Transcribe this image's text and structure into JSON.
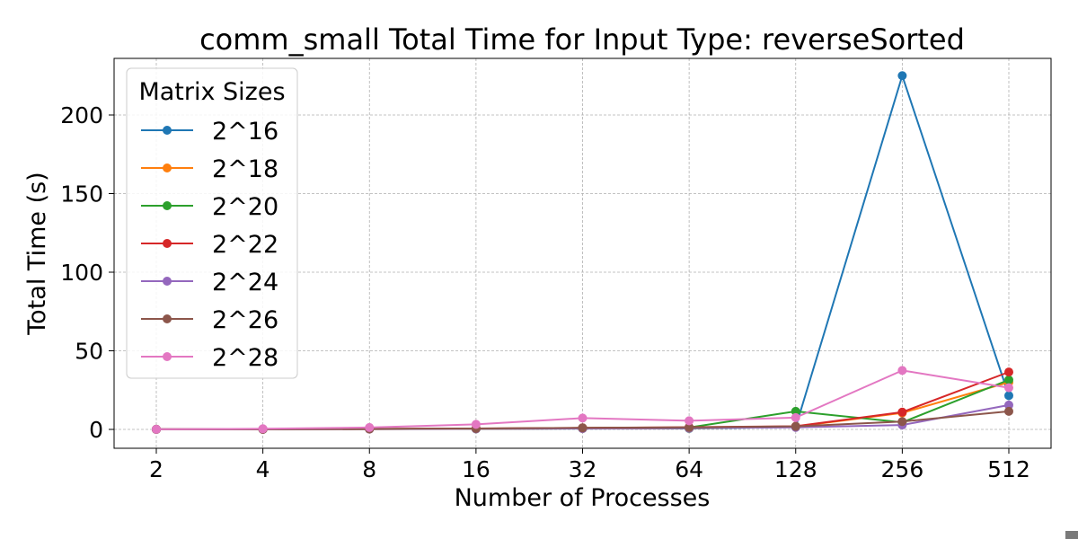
{
  "chart_data": {
    "type": "line",
    "title": "comm_small Total Time for Input Type: reverseSorted",
    "xlabel": "Number of Processes",
    "ylabel": "Total Time (s)",
    "x_scale": "categorical",
    "categories": [
      "2",
      "4",
      "8",
      "16",
      "32",
      "64",
      "128",
      "256",
      "512"
    ],
    "ylim": [
      -12,
      236
    ],
    "yticks": [
      0,
      50,
      100,
      150,
      200
    ],
    "ytick_labels": [
      "0",
      "50",
      "100",
      "150",
      "200"
    ],
    "grid": true,
    "legend": {
      "title": "Matrix Sizes",
      "placement": "top-left"
    },
    "series": [
      {
        "name": "2^16",
        "color": "#1f77b4",
        "values": [
          0.05,
          0.1,
          0.2,
          0.3,
          0.5,
          0.6,
          1.5,
          225.0,
          21.5
        ]
      },
      {
        "name": "2^18",
        "color": "#ff7f0e",
        "values": [
          0.05,
          0.1,
          0.2,
          0.4,
          0.6,
          0.8,
          1.8,
          10.5,
          30.0
        ]
      },
      {
        "name": "2^20",
        "color": "#2ca02c",
        "values": [
          0.05,
          0.1,
          0.3,
          0.5,
          0.9,
          1.2,
          11.5,
          4.5,
          31.5
        ]
      },
      {
        "name": "2^22",
        "color": "#d62728",
        "values": [
          0.05,
          0.1,
          0.3,
          0.6,
          1.0,
          1.4,
          2.0,
          11.0,
          36.5
        ]
      },
      {
        "name": "2^24",
        "color": "#9467bd",
        "values": [
          0.05,
          0.1,
          0.2,
          0.4,
          0.6,
          0.9,
          1.3,
          2.8,
          15.5
        ]
      },
      {
        "name": "2^26",
        "color": "#8c564b",
        "values": [
          0.05,
          0.1,
          0.3,
          0.6,
          1.0,
          1.3,
          1.9,
          5.0,
          11.5
        ]
      },
      {
        "name": "2^28",
        "color": "#e377c2",
        "values": [
          0.1,
          0.4,
          1.2,
          3.2,
          7.2,
          5.5,
          7.5,
          37.5,
          26.5
        ]
      }
    ]
  }
}
